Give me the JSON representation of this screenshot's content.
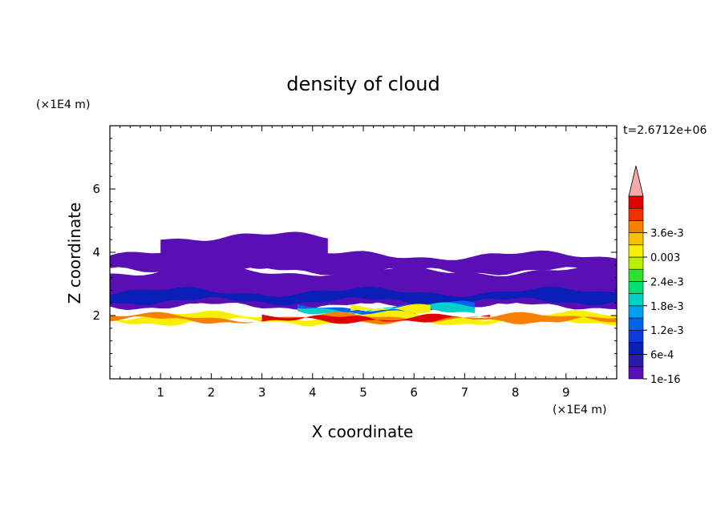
{
  "chart_data": {
    "type": "contour",
    "title": "density of cloud",
    "xlabel": "X coordinate",
    "ylabel": "Z coordinate",
    "x_unit": "(×1E4 m)",
    "y_unit": "(×1E4 m)",
    "time_label": "t=2.6712e+06",
    "xlim": [
      0,
      10
    ],
    "ylim": [
      0,
      8
    ],
    "x_ticks": [
      "1",
      "2",
      "3",
      "4",
      "5",
      "6",
      "7",
      "8",
      "9"
    ],
    "y_ticks": [
      "2",
      "4",
      "6"
    ],
    "colorbar": {
      "levels": [
        1e-16,
        0.0003,
        0.0006,
        0.0009,
        0.0012,
        0.0015,
        0.0018,
        0.0021,
        0.0024,
        0.0027,
        0.003,
        0.0033,
        0.0036,
        0.0039
      ],
      "labels": [
        "1e-16",
        "6e-4",
        "1.2e-3",
        "1.8e-3",
        "2.4e-3",
        "0.003",
        "3.6e-3"
      ],
      "colors": [
        "#5a0fb4",
        "#2a1aa8",
        "#0a1eb8",
        "#0a3cd8",
        "#0064f0",
        "#00a0f0",
        "#00d0c8",
        "#00e070",
        "#30e030",
        "#b8f000",
        "#f8f000",
        "#f8c000",
        "#f88000",
        "#f03000",
        "#e00000"
      ],
      "overflow_color": "#f4a8a8"
    },
    "layers": [
      {
        "level": "1e-16",
        "z_top": 3.9,
        "z_bottom": 3.4,
        "x_range": [
          0,
          10
        ]
      },
      {
        "level": "1e-16",
        "z_top": 4.5,
        "z_bottom": 3.6,
        "x_range": [
          1.0,
          4.3
        ]
      },
      {
        "level": "1e-16",
        "z_top": 3.4,
        "z_bottom": 2.5,
        "x_range": [
          0,
          10
        ]
      },
      {
        "level": "6e-4",
        "z_top": 2.9,
        "z_bottom": 2.3,
        "x_range": [
          0,
          10
        ]
      },
      {
        "level": "1.8e-3",
        "z_top": 2.3,
        "z_bottom": 2.1,
        "x_range": [
          3.7,
          7.2
        ]
      },
      {
        "level": "3.6e-3",
        "z_top": 2.0,
        "z_bottom": 1.8,
        "x_range": [
          0,
          10
        ]
      }
    ]
  }
}
